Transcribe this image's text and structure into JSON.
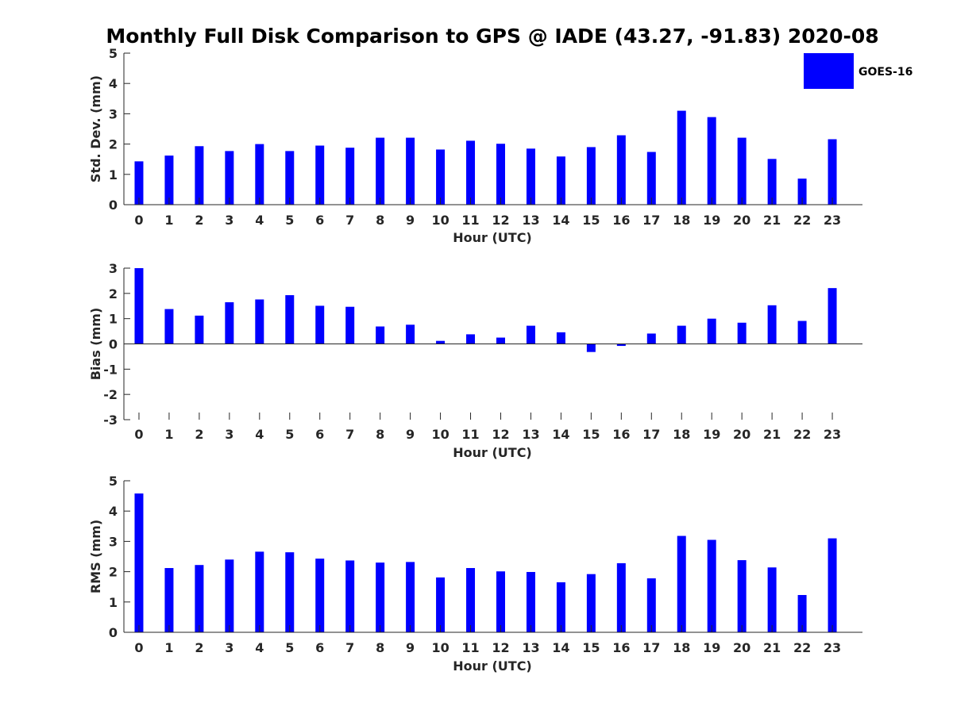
{
  "title": "Monthly Full Disk Comparison to GPS @ IADE (43.27, -91.83) 2020-08",
  "legend": {
    "label": "GOES-16",
    "color": "#0000ff"
  },
  "chart_data": [
    {
      "type": "bar",
      "ylabel": "Std. Dev. (mm)",
      "xlabel": "Hour (UTC)",
      "ylim": [
        0,
        5
      ],
      "yticks": [
        0,
        1,
        2,
        3,
        4,
        5
      ],
      "categories": [
        "0",
        "1",
        "2",
        "3",
        "4",
        "5",
        "6",
        "7",
        "8",
        "9",
        "10",
        "11",
        "12",
        "13",
        "14",
        "15",
        "16",
        "17",
        "18",
        "19",
        "20",
        "21",
        "22",
        "23"
      ],
      "series": [
        {
          "name": "GOES-16",
          "values": [
            1.43,
            1.62,
            1.93,
            1.77,
            2.0,
            1.77,
            1.95,
            1.88,
            2.21,
            2.21,
            1.82,
            2.11,
            2.01,
            1.85,
            1.59,
            1.9,
            2.29,
            1.74,
            3.1,
            2.89,
            2.21,
            1.51,
            0.86,
            2.16
          ]
        }
      ]
    },
    {
      "type": "bar",
      "ylabel": "Bias (mm)",
      "xlabel": "Hour (UTC)",
      "ylim": [
        -3,
        3
      ],
      "yticks": [
        -3,
        -2,
        -1,
        0,
        1,
        2,
        3
      ],
      "categories": [
        "0",
        "1",
        "2",
        "3",
        "4",
        "5",
        "6",
        "7",
        "8",
        "9",
        "10",
        "11",
        "12",
        "13",
        "14",
        "15",
        "16",
        "17",
        "18",
        "19",
        "20",
        "21",
        "22",
        "23"
      ],
      "series": [
        {
          "name": "GOES-16",
          "values": [
            3.0,
            1.38,
            1.12,
            1.65,
            1.76,
            1.93,
            1.51,
            1.47,
            0.69,
            0.76,
            0.12,
            0.38,
            0.25,
            0.72,
            0.46,
            -0.32,
            -0.08,
            0.41,
            0.72,
            1.0,
            0.84,
            1.53,
            0.91,
            2.21
          ]
        }
      ]
    },
    {
      "type": "bar",
      "ylabel": "RMS (mm)",
      "xlabel": "Hour (UTC)",
      "ylim": [
        0,
        5
      ],
      "yticks": [
        0,
        1,
        2,
        3,
        4,
        5
      ],
      "categories": [
        "0",
        "1",
        "2",
        "3",
        "4",
        "5",
        "6",
        "7",
        "8",
        "9",
        "10",
        "11",
        "12",
        "13",
        "14",
        "15",
        "16",
        "17",
        "18",
        "19",
        "20",
        "21",
        "22",
        "23"
      ],
      "series": [
        {
          "name": "GOES-16",
          "values": [
            4.58,
            2.12,
            2.22,
            2.4,
            2.66,
            2.64,
            2.43,
            2.37,
            2.3,
            2.32,
            1.81,
            2.12,
            2.01,
            1.99,
            1.65,
            1.92,
            2.28,
            1.78,
            3.18,
            3.05,
            2.38,
            2.14,
            1.23,
            3.1
          ]
        }
      ]
    }
  ]
}
